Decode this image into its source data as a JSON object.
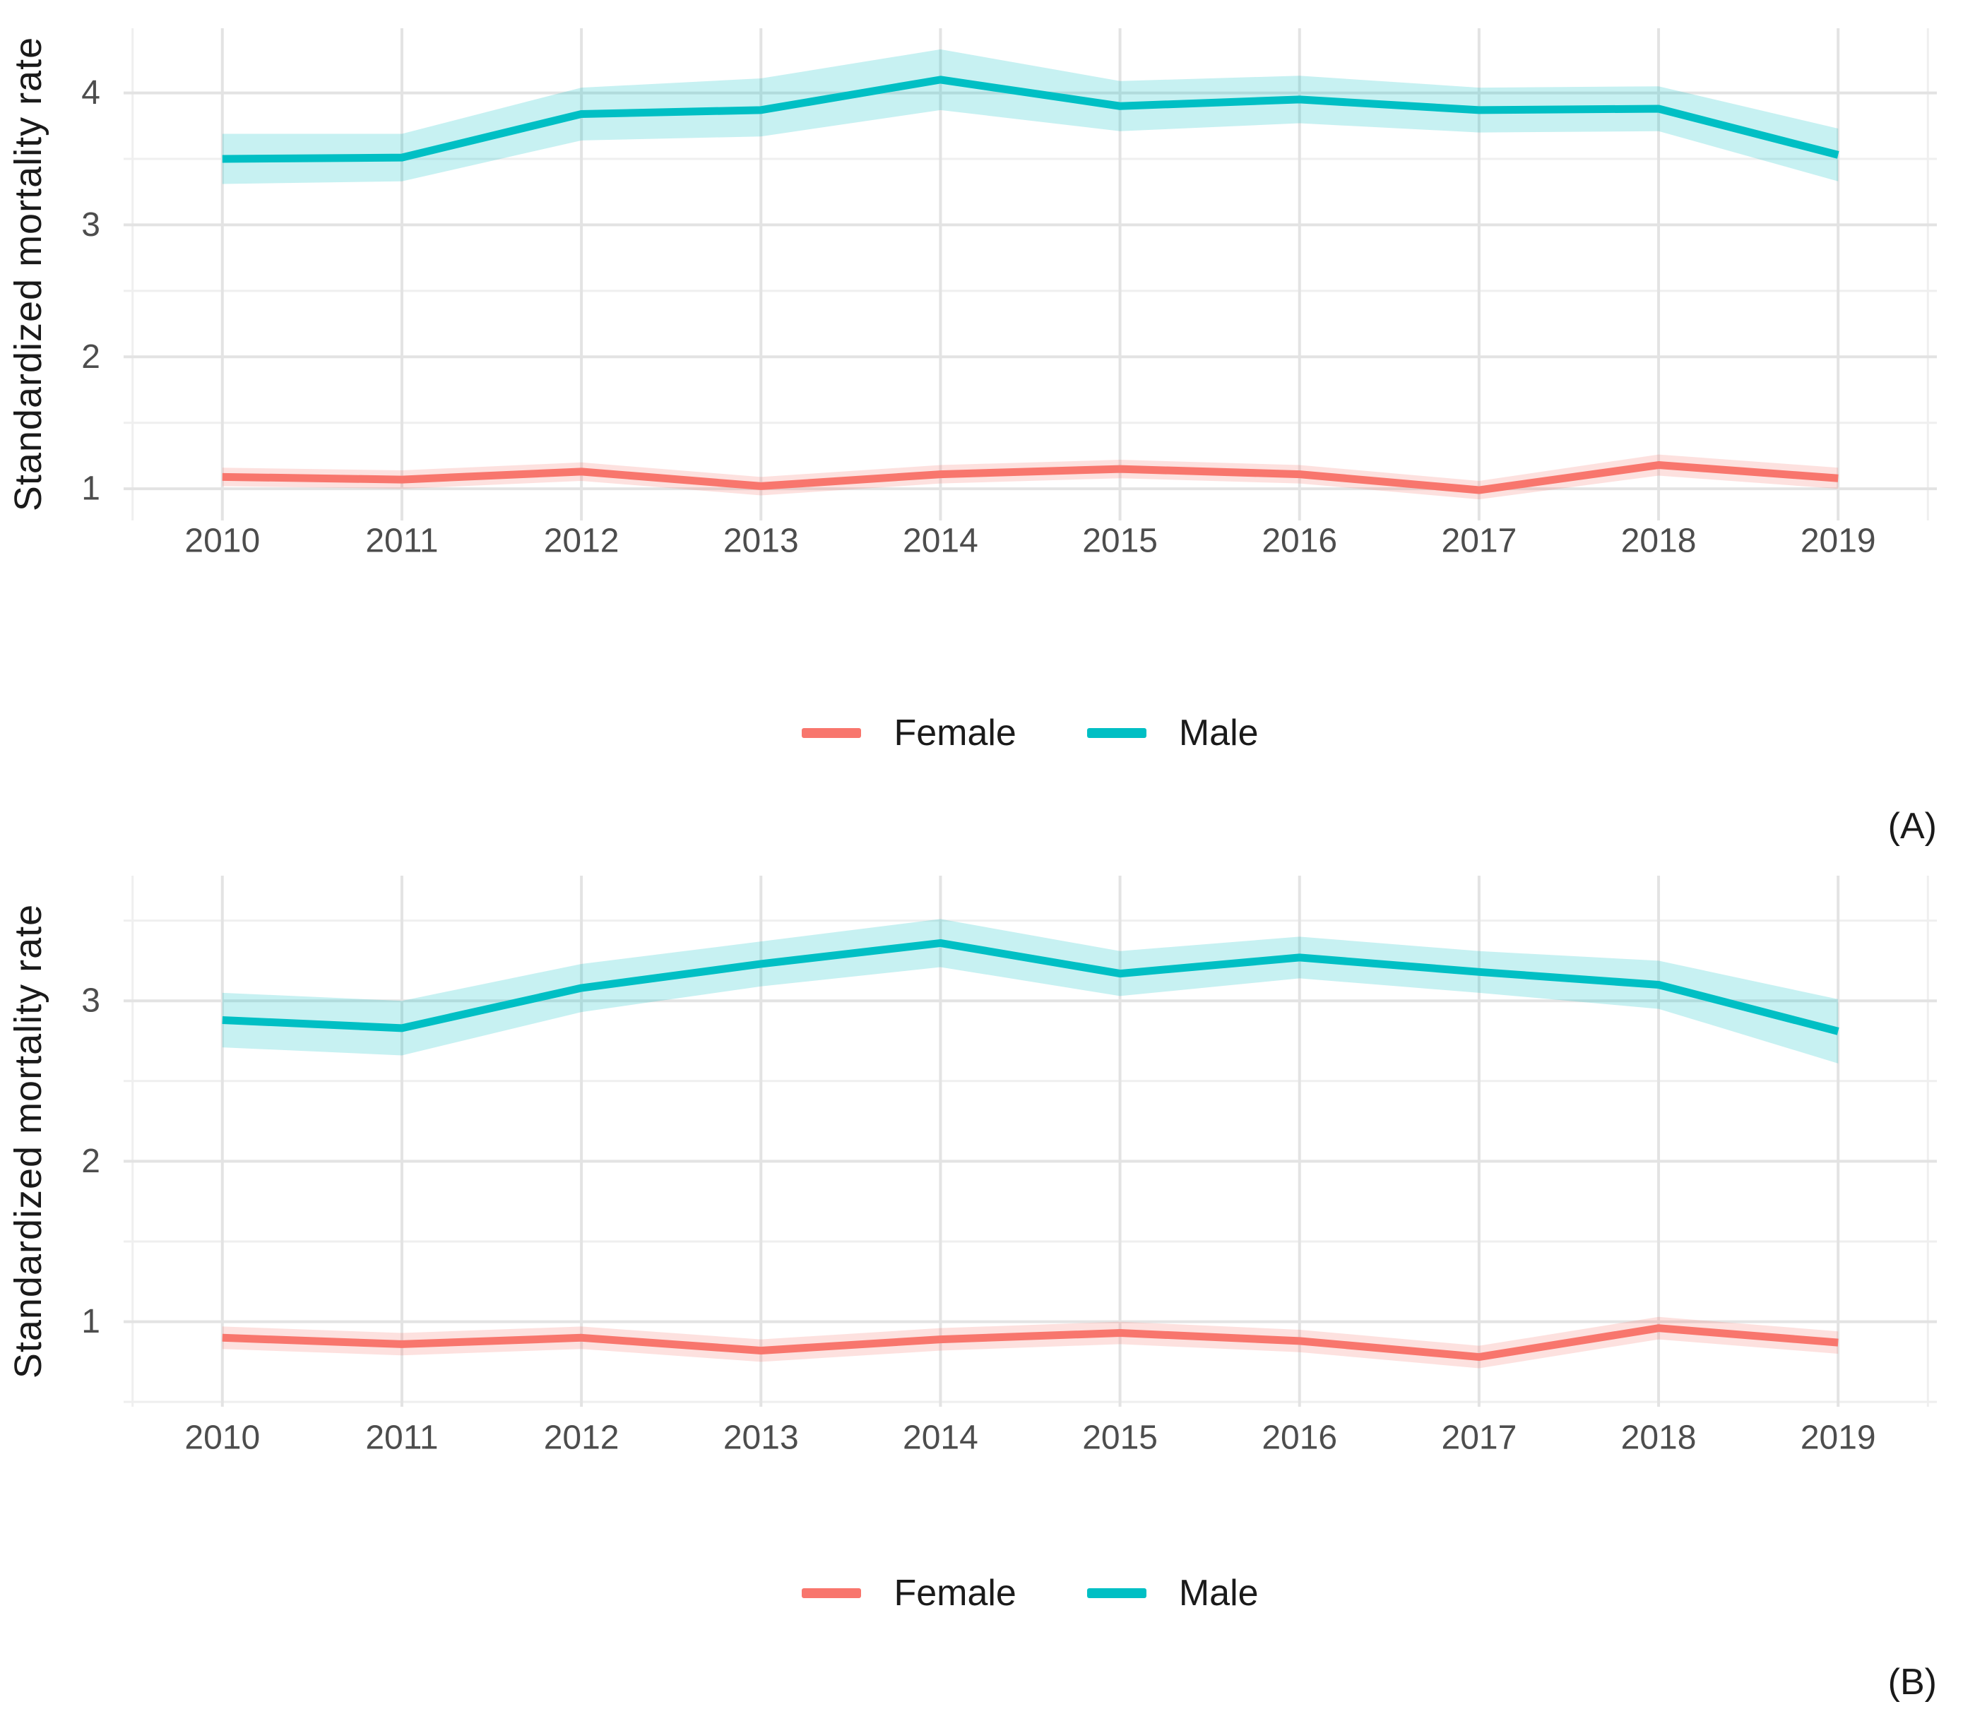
{
  "palette": {
    "female": "#F8766D",
    "male": "#00BFC4",
    "grid_major": "#E3E3E3",
    "grid_minor": "#EFEFEF",
    "tick_label_color": "#4D4D4D",
    "text_color": "#1A1A1A",
    "background": "#FFFFFF"
  },
  "chart_data": [
    {
      "panel_label": "(A)",
      "type": "line",
      "title": "",
      "xlabel": "",
      "ylabel": "Standardized mortality rate",
      "x": [
        2010,
        2011,
        2012,
        2013,
        2014,
        2015,
        2016,
        2017,
        2018,
        2019
      ],
      "xticks": [
        "2010",
        "2011",
        "2012",
        "2013",
        "2014",
        "2015",
        "2016",
        "2017",
        "2018",
        "2019"
      ],
      "yticks": [
        1,
        2,
        3,
        4
      ],
      "y_minor": [
        1.5,
        2.5,
        3.5
      ],
      "x_minor": [
        2009.5,
        2019.5
      ],
      "xlim": [
        2009.45,
        2019.55
      ],
      "ylim": [
        0.76,
        4.49
      ],
      "grid": true,
      "legend_position": "bottom",
      "series": [
        {
          "name": "Female",
          "color": "#F8766D",
          "values": [
            1.09,
            1.07,
            1.13,
            1.02,
            1.11,
            1.15,
            1.11,
            0.99,
            1.18,
            1.08
          ],
          "lower": [
            1.02,
            1.0,
            1.06,
            0.95,
            1.04,
            1.08,
            1.04,
            0.92,
            1.1,
            1.0
          ],
          "upper": [
            1.16,
            1.14,
            1.2,
            1.09,
            1.18,
            1.22,
            1.18,
            1.06,
            1.26,
            1.16
          ]
        },
        {
          "name": "Male",
          "color": "#00BFC4",
          "values": [
            3.5,
            3.51,
            3.84,
            3.87,
            4.1,
            3.9,
            3.95,
            3.87,
            3.88,
            3.53
          ],
          "lower": [
            3.31,
            3.33,
            3.64,
            3.67,
            3.87,
            3.71,
            3.77,
            3.7,
            3.71,
            3.33
          ],
          "upper": [
            3.69,
            3.69,
            4.04,
            4.11,
            4.33,
            4.09,
            4.13,
            4.04,
            4.05,
            3.73
          ]
        }
      ]
    },
    {
      "panel_label": "(B)",
      "type": "line",
      "title": "",
      "xlabel": "",
      "ylabel": "Standardized mortality rate",
      "x": [
        2010,
        2011,
        2012,
        2013,
        2014,
        2015,
        2016,
        2017,
        2018,
        2019
      ],
      "xticks": [
        "2010",
        "2011",
        "2012",
        "2013",
        "2014",
        "2015",
        "2016",
        "2017",
        "2018",
        "2019"
      ],
      "yticks": [
        1,
        2,
        3
      ],
      "y_minor": [
        0.5,
        1.5,
        2.5,
        3.5
      ],
      "x_minor": [
        2009.5,
        2019.5
      ],
      "xlim": [
        2009.45,
        2019.55
      ],
      "ylim": [
        0.47,
        3.78
      ],
      "grid": true,
      "legend_position": "bottom",
      "series": [
        {
          "name": "Female",
          "color": "#F8766D",
          "values": [
            0.9,
            0.86,
            0.9,
            0.82,
            0.89,
            0.93,
            0.88,
            0.78,
            0.96,
            0.87
          ],
          "lower": [
            0.83,
            0.79,
            0.83,
            0.75,
            0.82,
            0.86,
            0.81,
            0.71,
            0.89,
            0.8
          ],
          "upper": [
            0.97,
            0.93,
            0.97,
            0.89,
            0.96,
            1.0,
            0.95,
            0.85,
            1.03,
            0.94
          ]
        },
        {
          "name": "Male",
          "color": "#00BFC4",
          "values": [
            2.88,
            2.83,
            3.08,
            3.23,
            3.36,
            3.17,
            3.27,
            3.18,
            3.1,
            2.81
          ],
          "lower": [
            2.71,
            2.66,
            2.93,
            3.09,
            3.21,
            3.03,
            3.14,
            3.05,
            2.95,
            2.61
          ],
          "upper": [
            3.05,
            3.0,
            3.23,
            3.37,
            3.51,
            3.31,
            3.4,
            3.31,
            3.25,
            3.01
          ]
        }
      ]
    }
  ]
}
